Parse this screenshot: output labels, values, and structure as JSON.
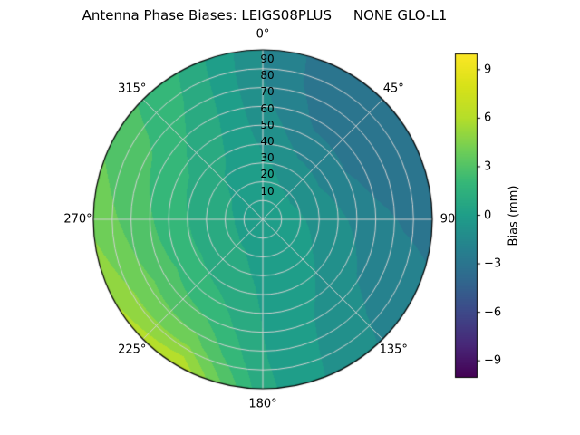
{
  "chart_data": {
    "type": "heatmap",
    "projection": "polar",
    "title": "Antenna Phase Biases: LEIGS08PLUS     NONE GLO-L1",
    "azimuth_tick_deg": [
      0,
      45,
      90,
      135,
      180,
      225,
      270,
      315
    ],
    "azimuth_tick_labels": [
      "0°",
      "45°",
      "90",
      "135°",
      "180°",
      "225°",
      "270°",
      "315°"
    ],
    "radial_tick_values": [
      10,
      20,
      30,
      40,
      50,
      60,
      70,
      80,
      90
    ],
    "radial_tick_labels": [
      "10",
      "20",
      "30",
      "40",
      "50",
      "60",
      "70",
      "80",
      "90"
    ],
    "colorbar": {
      "label": "Bias (mm)",
      "vmin": -10,
      "vmax": 10,
      "tick_values": [
        9,
        6,
        3,
        0,
        -3,
        -6,
        -9
      ],
      "tick_labels": [
        "9",
        "6",
        "3",
        "0",
        "−3",
        "−6",
        "−9"
      ],
      "colormap": "viridis",
      "colormap_stops": [
        "#440154",
        "#482878",
        "#3e4989",
        "#31688e",
        "#26828e",
        "#1f9e89",
        "#35b779",
        "#6ece58",
        "#b5de2b",
        "#d8e219",
        "#fde725"
      ]
    },
    "grid": {
      "azimuth_deg": [
        0,
        30,
        60,
        90,
        120,
        150,
        180,
        210,
        240,
        270,
        300,
        330
      ],
      "zenith_deg": [
        0,
        15,
        30,
        45,
        60,
        75,
        90
      ],
      "bias_mm": [
        [
          0.2,
          0.2,
          0.2,
          0.2,
          0.2,
          0.2,
          0.2,
          0.2,
          0.2,
          0.2,
          0.2,
          0.2
        ],
        [
          0.0,
          -0.3,
          -0.4,
          -0.2,
          0.0,
          0.1,
          0.2,
          0.4,
          0.5,
          0.5,
          0.4,
          0.2
        ],
        [
          -0.3,
          -1.0,
          -1.2,
          -0.8,
          -0.5,
          0.0,
          0.3,
          0.8,
          1.0,
          1.0,
          0.8,
          0.3
        ],
        [
          -0.8,
          -2.0,
          -2.2,
          -1.5,
          -1.0,
          -0.3,
          0.4,
          1.5,
          2.0,
          1.8,
          1.5,
          0.6
        ],
        [
          -1.2,
          -2.8,
          -3.0,
          -2.2,
          -1.6,
          -0.6,
          0.5,
          2.5,
          3.0,
          2.6,
          2.2,
          1.0
        ],
        [
          -1.5,
          -3.3,
          -3.4,
          -2.6,
          -2.0,
          -0.8,
          0.6,
          4.0,
          4.2,
          3.4,
          2.8,
          1.3
        ],
        [
          -1.5,
          -3.5,
          -3.5,
          -2.8,
          -2.2,
          -1.0,
          0.8,
          6.5,
          5.5,
          4.2,
          3.2,
          1.5
        ]
      ]
    },
    "grid_style": {
      "line_color": "#d2d2d2",
      "outline_color": "#000000"
    }
  }
}
